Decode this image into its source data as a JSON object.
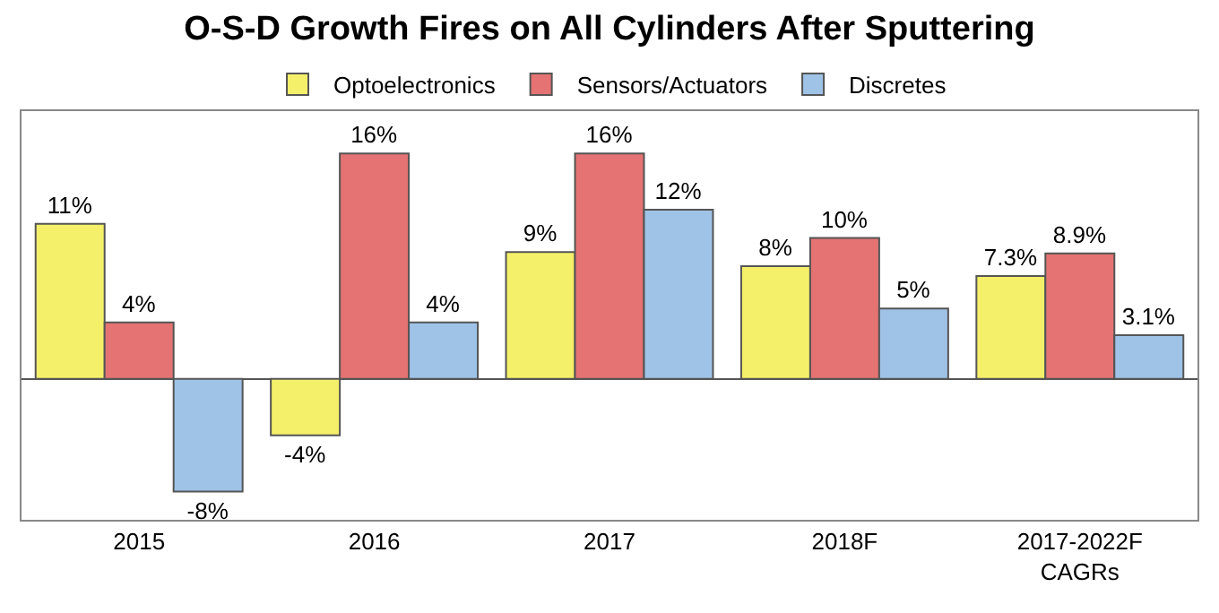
{
  "chart_data": {
    "type": "bar",
    "title": "O-S-D Growth Fires on All Cylinders After Sputtering",
    "categories": [
      "2015",
      "2016",
      "2017",
      "2018F",
      "2017-2022F\nCAGRs"
    ],
    "series": [
      {
        "name": "Optoelectronics",
        "color": "#f5f06a",
        "values": [
          11,
          -4,
          9,
          8,
          7.3
        ],
        "value_labels": [
          "11%",
          "-4%",
          "9%",
          "8%",
          "7.3%"
        ]
      },
      {
        "name": "Sensors/Actuators",
        "color": "#e57373",
        "values": [
          4,
          16,
          16,
          10,
          8.9
        ],
        "value_labels": [
          "4%",
          "16%",
          "16%",
          "10%",
          "8.9%"
        ]
      },
      {
        "name": "Discretes",
        "color": "#9fc3e7",
        "values": [
          -8,
          4,
          12,
          5,
          3.1
        ],
        "value_labels": [
          "-8%",
          "4%",
          "12%",
          "5%",
          "3.1%"
        ]
      }
    ],
    "legend": "top",
    "ylim": [
      -10,
      19
    ]
  }
}
